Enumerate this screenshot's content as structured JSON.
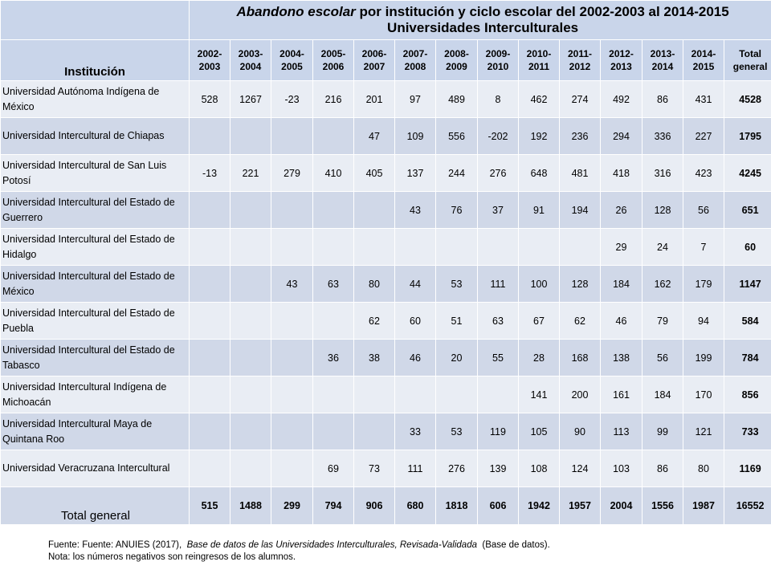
{
  "title": {
    "italic": "Abandono escolar",
    "rest": "por institución y ciclo escolar del  2002-2003 al  2014-2015",
    "line2": "Universidades Interculturales"
  },
  "header": {
    "institution": "Institución",
    "years": [
      "2002-\n2003",
      "2003-\n2004",
      "2004-\n2005",
      "2005-\n2006",
      "2006-\n2007",
      "2007-\n2008",
      "2008-\n2009",
      "2009-\n2010",
      "2010-\n2011",
      "2011-\n2012",
      "2012-\n2013",
      "2013-\n2014",
      "2014-\n2015"
    ],
    "total": "Total\ngeneral"
  },
  "rows": [
    {
      "name": "Universidad Autónoma  Indígena de México",
      "values": [
        "528",
        "1267",
        "-23",
        "216",
        "201",
        "97",
        "489",
        "8",
        "462",
        "274",
        "492",
        "86",
        "431"
      ],
      "total": "4528"
    },
    {
      "name": "Universidad Intercultural de Chiapas",
      "values": [
        "",
        "",
        "",
        "",
        "47",
        "109",
        "556",
        "-202",
        "192",
        "236",
        "294",
        "336",
        "227"
      ],
      "total": "1795"
    },
    {
      "name": "Universidad Intercultural de San Luis Potosí",
      "values": [
        "-13",
        "221",
        "279",
        "410",
        "405",
        "137",
        "244",
        "276",
        "648",
        "481",
        "418",
        "316",
        "423"
      ],
      "total": "4245"
    },
    {
      "name": "Universidad Intercultural del Estado de Guerrero",
      "values": [
        "",
        "",
        "",
        "",
        "",
        "43",
        "76",
        "37",
        "91",
        "194",
        "26",
        "128",
        "56"
      ],
      "total": "651"
    },
    {
      "name": "Universidad Intercultural del Estado de Hidalgo",
      "values": [
        "",
        "",
        "",
        "",
        "",
        "",
        "",
        "",
        "",
        "",
        "29",
        "24",
        "7"
      ],
      "total": "60"
    },
    {
      "name": "Universidad Intercultural del Estado de México",
      "values": [
        "",
        "",
        "43",
        "63",
        "80",
        "44",
        "53",
        "111",
        "100",
        "128",
        "184",
        "162",
        "179"
      ],
      "total": "1147"
    },
    {
      "name": "Universidad Intercultural del Estado de Puebla",
      "values": [
        "",
        "",
        "",
        "",
        "62",
        "60",
        "51",
        "63",
        "67",
        "62",
        "46",
        "79",
        "94"
      ],
      "total": "584"
    },
    {
      "name": "Universidad Intercultural del Estado de Tabasco",
      "values": [
        "",
        "",
        "",
        "36",
        "38",
        "46",
        "20",
        "55",
        "28",
        "168",
        "138",
        "56",
        "199"
      ],
      "total": "784"
    },
    {
      "name": "Universidad Intercultural Indígena de Michoacán",
      "values": [
        "",
        "",
        "",
        "",
        "",
        "",
        "",
        "",
        "141",
        "200",
        "161",
        "184",
        "170"
      ],
      "total": "856"
    },
    {
      "name": "Universidad Intercultural Maya de Quintana Roo",
      "values": [
        "",
        "",
        "",
        "",
        "",
        "33",
        "53",
        "119",
        "105",
        "90",
        "113",
        "99",
        "121"
      ],
      "total": "733"
    },
    {
      "name": "Universidad Veracruzana Intercultural",
      "values": [
        "",
        "",
        "",
        "69",
        "73",
        "111",
        "276",
        "139",
        "108",
        "124",
        "103",
        "86",
        "80"
      ],
      "total": "1169"
    }
  ],
  "total_row": {
    "label": "Total general",
    "values": [
      "515",
      "1488",
      "299",
      "794",
      "906",
      "680",
      "1818",
      "606",
      "1942",
      "1957",
      "2004",
      "1556",
      "1987"
    ],
    "total": "16552"
  },
  "footer": {
    "source_prefix": "Fuente: Fuente: ANUIES (2017),",
    "source_italic": "Base de datos de las Universidades Interculturales, Revisada-Validada",
    "source_suffix": "(Base de datos).",
    "note": "Nota: los números negativos  son reingresos de los alumnos."
  }
}
